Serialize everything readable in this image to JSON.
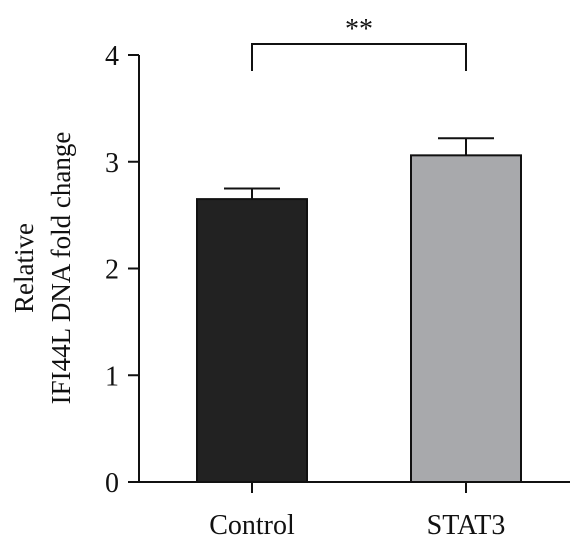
{
  "chart_data": {
    "type": "bar",
    "categories": [
      "Control",
      "STAT3"
    ],
    "values": [
      2.65,
      3.06
    ],
    "errors": [
      0.1,
      0.16
    ],
    "colors": [
      "#222222",
      "#a8a9ac"
    ],
    "ylabel_lines": [
      "Relative",
      "IFI44L DNA fold change"
    ],
    "ylim": [
      0,
      4
    ],
    "yticks": [
      "0",
      "1",
      "2",
      "3",
      "4"
    ],
    "significance": {
      "label": "**",
      "between": [
        0,
        1
      ]
    },
    "grid": false,
    "legend": "none"
  }
}
